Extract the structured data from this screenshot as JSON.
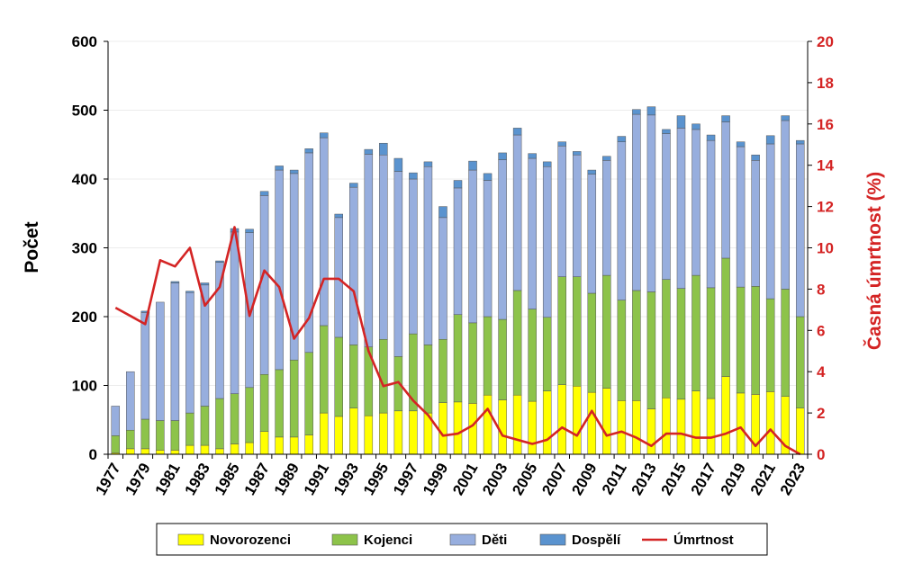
{
  "chart_data": {
    "type": "bar",
    "subtype": "stacked-bar-with-line",
    "title": "",
    "xlabel": "",
    "ylabel": "Počet",
    "y2label": "Časná úmrtnost (%)",
    "ylim": [
      0,
      600
    ],
    "y2lim": [
      0,
      20
    ],
    "yticks": [
      "0",
      "100",
      "200",
      "300",
      "400",
      "500",
      "600"
    ],
    "y2ticks": [
      "0",
      "2",
      "4",
      "6",
      "8",
      "10",
      "12",
      "14",
      "16",
      "18",
      "20"
    ],
    "grid": true,
    "legend_position": "bottom",
    "categories": [
      "1977",
      "1978",
      "1979",
      "1980",
      "1981",
      "1982",
      "1983",
      "1984",
      "1985",
      "1986",
      "1987",
      "1988",
      "1989",
      "1990",
      "1991",
      "1992",
      "1993",
      "1994",
      "1995",
      "1996",
      "1997",
      "1998",
      "1999",
      "2000",
      "2001",
      "2002",
      "2003",
      "2004",
      "2005",
      "2006",
      "2007",
      "2008",
      "2009",
      "2010",
      "2011",
      "2012",
      "2013",
      "2014",
      "2015",
      "2016",
      "2017",
      "2018",
      "2019",
      "2020",
      "2021",
      "2022",
      "2023"
    ],
    "xtick_labels": [
      "1977",
      "1979",
      "1981",
      "1983",
      "1985",
      "1987",
      "1989",
      "1991",
      "1993",
      "1995",
      "1997",
      "1999",
      "2001",
      "2003",
      "2005",
      "2007",
      "2009",
      "2011",
      "2013",
      "2015",
      "2017",
      "2019",
      "2021",
      "2023"
    ],
    "series": [
      {
        "name": "Novorozenci",
        "color": "#ffff00",
        "values": [
          2,
          8,
          8,
          6,
          6,
          13,
          13,
          8,
          15,
          17,
          33,
          25,
          25,
          28,
          60,
          55,
          67,
          56,
          60,
          63,
          63,
          60,
          75,
          76,
          74,
          86,
          79,
          86,
          77,
          92,
          101,
          99,
          90,
          96,
          78,
          78,
          66,
          82,
          80,
          92,
          81,
          113,
          89,
          87,
          91,
          84,
          67
        ]
      },
      {
        "name": "Kojenci",
        "color": "#8dc34a",
        "values": [
          25,
          27,
          43,
          43,
          43,
          47,
          57,
          73,
          73,
          80,
          83,
          98,
          112,
          120,
          127,
          115,
          92,
          100,
          107,
          79,
          112,
          99,
          92,
          127,
          117,
          114,
          117,
          152,
          134,
          107,
          157,
          159,
          144,
          164,
          146,
          160,
          170,
          172,
          161,
          168,
          161,
          172,
          154,
          157,
          135,
          156,
          133
        ]
      },
      {
        "name": "Děti",
        "color": "#97aede",
        "values": [
          43,
          85,
          155,
          172,
          200,
          175,
          176,
          198,
          235,
          225,
          260,
          290,
          271,
          290,
          273,
          174,
          229,
          280,
          268,
          269,
          225,
          259,
          177,
          184,
          222,
          198,
          232,
          226,
          219,
          219,
          190,
          177,
          173,
          167,
          230,
          256,
          257,
          212,
          233,
          212,
          214,
          198,
          204,
          183,
          225,
          245,
          251
        ]
      },
      {
        "name": "Dospělí",
        "color": "#5a93cf",
        "values": [
          0,
          0,
          2,
          0,
          2,
          2,
          3,
          2,
          5,
          5,
          6,
          6,
          5,
          6,
          7,
          5,
          6,
          7,
          17,
          19,
          9,
          7,
          16,
          11,
          13,
          10,
          10,
          10,
          7,
          7,
          6,
          5,
          6,
          6,
          8,
          7,
          12,
          6,
          18,
          8,
          8,
          9,
          7,
          8,
          12,
          7,
          5
        ]
      },
      {
        "name": "Úmrtnost",
        "color": "#d42424",
        "axis": "right",
        "values": [
          7.1,
          6.7,
          6.3,
          9.4,
          9.1,
          10.0,
          7.2,
          8.1,
          11.0,
          6.7,
          8.9,
          8.1,
          5.6,
          6.6,
          8.5,
          8.5,
          7.9,
          5.0,
          3.3,
          3.5,
          2.6,
          1.9,
          0.9,
          1.0,
          1.4,
          2.2,
          0.9,
          0.7,
          0.5,
          0.7,
          1.3,
          0.9,
          2.1,
          0.9,
          1.1,
          0.8,
          0.4,
          1.0,
          1.0,
          0.8,
          0.8,
          1.0,
          1.3,
          0.4,
          1.2,
          0.4,
          0.0
        ]
      }
    ]
  }
}
